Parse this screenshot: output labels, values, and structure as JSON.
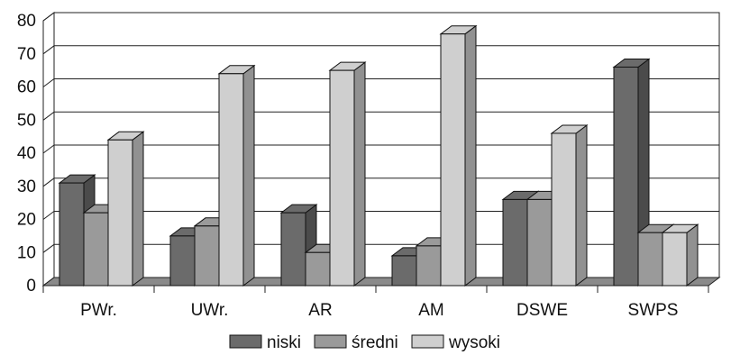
{
  "chart_data": {
    "type": "bar",
    "style": "3d-clustered-column",
    "categories": [
      "PWr.",
      "UWr.",
      "AR",
      "AM",
      "DSWE",
      "SWPS"
    ],
    "series": [
      {
        "name": "niski",
        "color": "#6b6b6b",
        "values": [
          31,
          15,
          22,
          9,
          26,
          66
        ]
      },
      {
        "name": "średni",
        "color": "#9a9a9a",
        "values": [
          22,
          18,
          10,
          12,
          26,
          16
        ]
      },
      {
        "name": "wysoki",
        "color": "#cfcfcf",
        "values": [
          44,
          64,
          65,
          76,
          46,
          16
        ]
      }
    ],
    "ylim": [
      0,
      80
    ],
    "yticks": [
      "0",
      "10",
      "20",
      "30",
      "40",
      "50",
      "60",
      "70",
      "80"
    ],
    "grid": true,
    "legend_position": "bottom",
    "title": "",
    "xlabel": "",
    "ylabel": ""
  }
}
